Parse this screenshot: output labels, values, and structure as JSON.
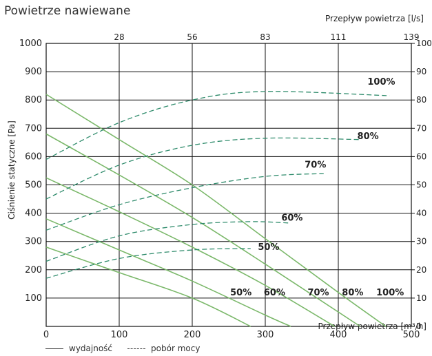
{
  "chart_data": {
    "type": "line",
    "title": "Powietrze nawiewane",
    "xlabel": "Przepływ powietrza [m³/h]",
    "ylabel": "Ciśnienie statyczne [Pa]",
    "x2label": "Przepływ powietrza [l/s]",
    "xlim": [
      0,
      500
    ],
    "ylim": [
      0,
      1000
    ],
    "y2lim": [
      0,
      100
    ],
    "x_ticks": [
      0,
      100,
      200,
      300,
      400,
      500
    ],
    "y_ticks": [
      100,
      200,
      300,
      400,
      500,
      600,
      700,
      800,
      900,
      1000
    ],
    "y2_ticks": [
      0,
      10,
      20,
      30,
      40,
      50,
      60,
      70,
      80,
      90,
      100
    ],
    "x2_ticks": [
      {
        "label": "28",
        "x": 100
      },
      {
        "label": "56",
        "x": 200
      },
      {
        "label": "83",
        "x": 300
      },
      {
        "label": "111",
        "x": 400
      },
      {
        "label": "139",
        "x": 500
      }
    ],
    "grid": true,
    "legend": {
      "solid": "wydajność",
      "dashed": "pobór mocy"
    },
    "pressure_curves": [
      {
        "label": "50%",
        "label_at": [
          252,
          110
        ],
        "points": [
          [
            0,
            280
          ],
          [
            100,
            190
          ],
          [
            200,
            100
          ],
          [
            280,
            0
          ]
        ]
      },
      {
        "label": "60%",
        "label_at": [
          298,
          110
        ],
        "points": [
          [
            0,
            380
          ],
          [
            100,
            270
          ],
          [
            200,
            160
          ],
          [
            300,
            40
          ],
          [
            335,
            0
          ]
        ]
      },
      {
        "label": "70%",
        "label_at": [
          358,
          110
        ],
        "points": [
          [
            0,
            525
          ],
          [
            100,
            405
          ],
          [
            200,
            280
          ],
          [
            300,
            145
          ],
          [
            395,
            0
          ]
        ]
      },
      {
        "label": "80%",
        "label_at": [
          405,
          110
        ],
        "points": [
          [
            0,
            680
          ],
          [
            100,
            535
          ],
          [
            200,
            385
          ],
          [
            300,
            220
          ],
          [
            430,
            0
          ]
        ]
      },
      {
        "label": "100%",
        "label_at": [
          452,
          110
        ],
        "points": [
          [
            0,
            820
          ],
          [
            100,
            660
          ],
          [
            200,
            500
          ],
          [
            300,
            310
          ],
          [
            400,
            120
          ],
          [
            465,
            0
          ]
        ]
      }
    ],
    "power_curves": [
      {
        "label": "50%",
        "label_at": [
          290,
          270
        ],
        "points": [
          [
            0,
            17
          ],
          [
            100,
            24
          ],
          [
            200,
            27
          ],
          [
            280,
            27.5
          ]
        ]
      },
      {
        "label": "60%",
        "label_at": [
          322,
          373
        ],
        "points": [
          [
            0,
            23
          ],
          [
            100,
            32
          ],
          [
            200,
            36
          ],
          [
            280,
            37
          ],
          [
            335,
            36.5
          ]
        ]
      },
      {
        "label": "70%",
        "label_at": [
          354,
          561
        ],
        "points": [
          [
            0,
            34
          ],
          [
            100,
            43
          ],
          [
            200,
            49
          ],
          [
            300,
            53
          ],
          [
            380,
            54
          ]
        ]
      },
      {
        "label": "80%",
        "label_at": [
          426,
          662
        ],
        "points": [
          [
            0,
            45
          ],
          [
            100,
            57
          ],
          [
            200,
            64
          ],
          [
            300,
            66.5
          ],
          [
            430,
            66
          ]
        ]
      },
      {
        "label": "100%",
        "label_at": [
          440,
          854
        ],
        "points": [
          [
            0,
            59
          ],
          [
            100,
            72
          ],
          [
            200,
            80
          ],
          [
            300,
            83
          ],
          [
            470,
            81.5
          ]
        ]
      }
    ],
    "colors": {
      "pressure": "#7bb86a",
      "power": "#2e8b6b",
      "grid": "#111111"
    }
  }
}
